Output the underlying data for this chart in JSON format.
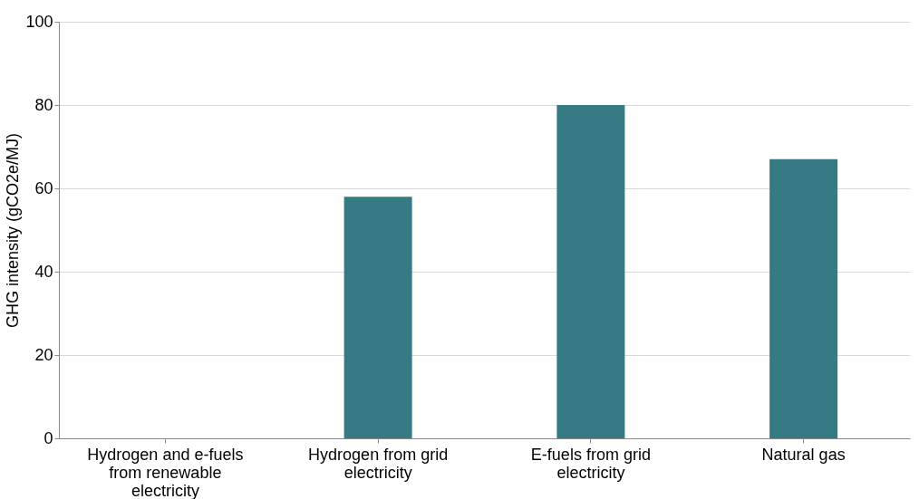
{
  "chart_data": {
    "type": "bar",
    "ylabel": "GHG intensity (gCO2e/MJ)",
    "categories": [
      "Hydrogen and e-fuels from renewable electricity",
      "Hydrogen from grid electricity",
      "E-fuels from grid electricity",
      "Natural gas"
    ],
    "values": [
      0,
      58,
      80,
      67
    ],
    "color": "#367b83",
    "ylim": [
      0,
      100
    ],
    "yticks": [
      0,
      20,
      40,
      60,
      80,
      100
    ],
    "grid": "y"
  }
}
